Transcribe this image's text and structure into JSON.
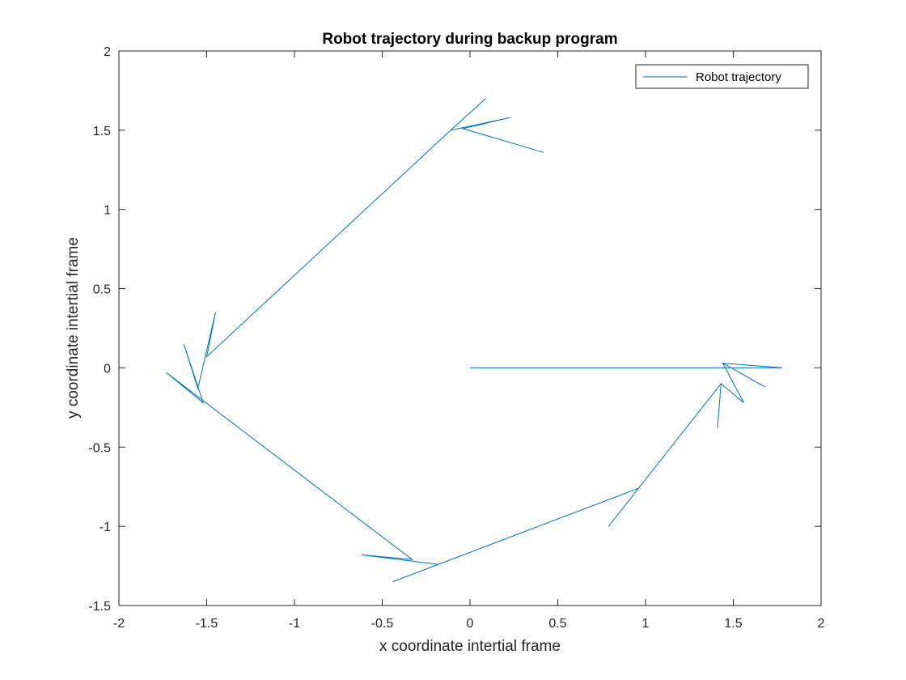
{
  "chart_data": {
    "type": "line",
    "title": "Robot trajectory during backup program",
    "xlabel": "x coordinate intertial frame",
    "ylabel": "y coordinate intertial frame",
    "xlim": [
      -2,
      2
    ],
    "ylim": [
      -1.5,
      2
    ],
    "xticks": [
      -2,
      -1.5,
      -1,
      -0.5,
      0,
      0.5,
      1,
      1.5,
      2
    ],
    "yticks": [
      -1.5,
      -1,
      -0.5,
      0,
      0.5,
      1,
      1.5,
      2
    ],
    "xtick_labels": [
      "-2",
      "-1.5",
      "-1",
      "-0.5",
      "0",
      "0.5",
      "1",
      "1.5",
      "2"
    ],
    "ytick_labels": [
      "-1.5",
      "-1",
      "-0.5",
      "0",
      "0.5",
      "1",
      "1.5",
      "2"
    ],
    "grid": false,
    "legend": {
      "position": "top-right",
      "entries": [
        "Robot trajectory"
      ]
    },
    "series": [
      {
        "name": "Robot trajectory",
        "color": "#0072BD",
        "x": [
          0,
          1.78,
          1.44,
          1.68,
          1.44,
          1.56,
          1.43,
          1.41,
          1.43,
          0.96,
          0.79,
          0.96,
          -0.44,
          -0.18,
          -0.62,
          -0.33,
          -1.73,
          -1.52,
          -1.63,
          -1.55,
          -1.45,
          -1.5,
          -0.11,
          0.09,
          -0.11,
          0.23,
          -0.04,
          0.42
        ],
        "y": [
          0,
          0,
          0.03,
          -0.12,
          0.03,
          -0.22,
          -0.1,
          -0.38,
          -0.1,
          -0.76,
          -1.0,
          -0.76,
          -1.35,
          -1.24,
          -1.18,
          -1.21,
          -0.03,
          -0.22,
          0.15,
          -0.13,
          0.35,
          0.07,
          1.5,
          1.7,
          1.5,
          1.58,
          1.51,
          1.36
        ]
      }
    ]
  }
}
